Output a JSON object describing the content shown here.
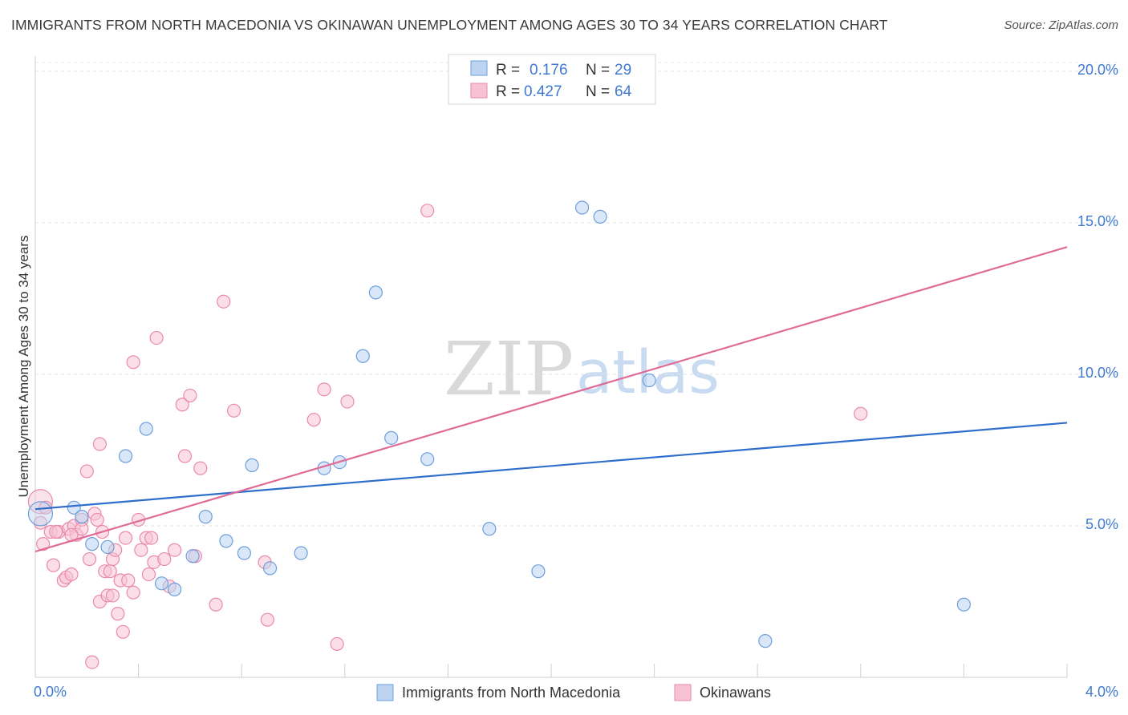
{
  "header": {
    "title": "IMMIGRANTS FROM NORTH MACEDONIA VS OKINAWAN UNEMPLOYMENT AMONG AGES 30 TO 34 YEARS CORRELATION CHART",
    "source": "Source: ZipAtlas.com"
  },
  "watermark": {
    "zip": "ZIP",
    "atlas": "atlas"
  },
  "legend": {
    "r_label": "R =",
    "n_label": "N =",
    "rows": [
      {
        "r": "0.176",
        "n": "29"
      },
      {
        "r": "0.427",
        "n": "64"
      }
    ]
  },
  "colors": {
    "blue_fill": "#bcd4f2",
    "blue_stroke": "#6d9fdc",
    "blue_line": "#2f6fcb",
    "pink_fill": "#f7c2d4",
    "pink_stroke": "#e98aac",
    "pink_line": "#e06b96"
  },
  "chart_data": {
    "type": "scatter",
    "title": "IMMIGRANTS FROM NORTH MACEDONIA VS OKINAWAN UNEMPLOYMENT AMONG AGES 30 TO 34 YEARS CORRELATION CHART",
    "xlabel": "",
    "ylabel": "Unemployment Among Ages 30 to 34 years",
    "xlim": [
      0,
      4
    ],
    "ylim": [
      0,
      20.5
    ],
    "x_tick_labels": [
      "0.0%",
      "4.0%"
    ],
    "y_ticks": [
      5,
      10,
      15,
      20
    ],
    "y_tick_labels": [
      "5.0%",
      "10.0%",
      "15.0%",
      "20.0%"
    ],
    "grid": true,
    "legend_position": "top-center",
    "series": [
      {
        "name": "Immigrants from North Macedonia",
        "color": "#6d9fdc",
        "trend": {
          "x": [
            0,
            4
          ],
          "y": [
            5.55,
            8.4
          ]
        },
        "points": [
          {
            "x": 0.02,
            "y": 5.4,
            "big": true
          },
          {
            "x": 0.15,
            "y": 5.6
          },
          {
            "x": 0.18,
            "y": 5.3
          },
          {
            "x": 0.22,
            "y": 4.4
          },
          {
            "x": 0.35,
            "y": 7.3
          },
          {
            "x": 0.43,
            "y": 8.2
          },
          {
            "x": 0.49,
            "y": 3.1
          },
          {
            "x": 0.54,
            "y": 2.9
          },
          {
            "x": 0.61,
            "y": 4.0
          },
          {
            "x": 0.66,
            "y": 5.3
          },
          {
            "x": 0.74,
            "y": 4.5
          },
          {
            "x": 0.81,
            "y": 4.1
          },
          {
            "x": 0.84,
            "y": 7.0
          },
          {
            "x": 0.91,
            "y": 3.6
          },
          {
            "x": 1.03,
            "y": 4.1
          },
          {
            "x": 1.12,
            "y": 6.9
          },
          {
            "x": 1.18,
            "y": 7.1
          },
          {
            "x": 1.27,
            "y": 10.6
          },
          {
            "x": 1.32,
            "y": 12.7
          },
          {
            "x": 1.38,
            "y": 7.9
          },
          {
            "x": 1.52,
            "y": 7.2
          },
          {
            "x": 1.76,
            "y": 4.9
          },
          {
            "x": 1.95,
            "y": 3.5
          },
          {
            "x": 2.12,
            "y": 15.5
          },
          {
            "x": 2.19,
            "y": 15.2
          },
          {
            "x": 2.38,
            "y": 9.8
          },
          {
            "x": 2.83,
            "y": 1.2
          },
          {
            "x": 3.6,
            "y": 2.4
          },
          {
            "x": 0.28,
            "y": 4.3
          }
        ]
      },
      {
        "name": "Okinawans",
        "color": "#e98aac",
        "trend": {
          "x": [
            0,
            4
          ],
          "y": [
            4.15,
            14.2
          ]
        },
        "points": [
          {
            "x": 0.02,
            "y": 5.8,
            "big": true
          },
          {
            "x": 0.02,
            "y": 5.1
          },
          {
            "x": 0.03,
            "y": 4.4
          },
          {
            "x": 0.04,
            "y": 5.6
          },
          {
            "x": 0.06,
            "y": 4.8
          },
          {
            "x": 0.07,
            "y": 3.7
          },
          {
            "x": 0.09,
            "y": 4.8
          },
          {
            "x": 0.11,
            "y": 3.2
          },
          {
            "x": 0.12,
            "y": 3.3
          },
          {
            "x": 0.13,
            "y": 4.9
          },
          {
            "x": 0.14,
            "y": 3.4
          },
          {
            "x": 0.15,
            "y": 5.0
          },
          {
            "x": 0.16,
            "y": 4.7
          },
          {
            "x": 0.18,
            "y": 5.2
          },
          {
            "x": 0.2,
            "y": 6.8
          },
          {
            "x": 0.21,
            "y": 3.9
          },
          {
            "x": 0.23,
            "y": 5.4
          },
          {
            "x": 0.24,
            "y": 5.2
          },
          {
            "x": 0.25,
            "y": 2.5
          },
          {
            "x": 0.25,
            "y": 7.7
          },
          {
            "x": 0.27,
            "y": 3.5
          },
          {
            "x": 0.28,
            "y": 2.7
          },
          {
            "x": 0.29,
            "y": 3.5
          },
          {
            "x": 0.3,
            "y": 3.9
          },
          {
            "x": 0.31,
            "y": 4.2
          },
          {
            "x": 0.32,
            "y": 2.1
          },
          {
            "x": 0.33,
            "y": 3.2
          },
          {
            "x": 0.34,
            "y": 1.5
          },
          {
            "x": 0.35,
            "y": 4.6
          },
          {
            "x": 0.36,
            "y": 3.2
          },
          {
            "x": 0.38,
            "y": 2.8
          },
          {
            "x": 0.38,
            "y": 10.4
          },
          {
            "x": 0.4,
            "y": 5.2
          },
          {
            "x": 0.41,
            "y": 4.2
          },
          {
            "x": 0.43,
            "y": 4.6
          },
          {
            "x": 0.44,
            "y": 3.4
          },
          {
            "x": 0.45,
            "y": 4.6
          },
          {
            "x": 0.46,
            "y": 3.8
          },
          {
            "x": 0.47,
            "y": 11.2
          },
          {
            "x": 0.5,
            "y": 3.9
          },
          {
            "x": 0.52,
            "y": 3.0
          },
          {
            "x": 0.54,
            "y": 4.2
          },
          {
            "x": 0.57,
            "y": 9.0
          },
          {
            "x": 0.58,
            "y": 7.3
          },
          {
            "x": 0.6,
            "y": 9.3
          },
          {
            "x": 0.62,
            "y": 4.0
          },
          {
            "x": 0.64,
            "y": 6.9
          },
          {
            "x": 0.7,
            "y": 2.4
          },
          {
            "x": 0.73,
            "y": 12.4
          },
          {
            "x": 0.77,
            "y": 8.8
          },
          {
            "x": 0.89,
            "y": 3.8
          },
          {
            "x": 0.9,
            "y": 1.9
          },
          {
            "x": 1.08,
            "y": 8.5
          },
          {
            "x": 1.12,
            "y": 9.5
          },
          {
            "x": 1.17,
            "y": 1.1
          },
          {
            "x": 1.21,
            "y": 9.1
          },
          {
            "x": 1.52,
            "y": 15.4
          },
          {
            "x": 3.2,
            "y": 8.7
          },
          {
            "x": 0.22,
            "y": 0.5
          },
          {
            "x": 0.26,
            "y": 4.8
          },
          {
            "x": 0.3,
            "y": 2.7
          },
          {
            "x": 0.18,
            "y": 4.9
          },
          {
            "x": 0.14,
            "y": 4.7
          },
          {
            "x": 0.08,
            "y": 4.8
          }
        ]
      }
    ]
  }
}
